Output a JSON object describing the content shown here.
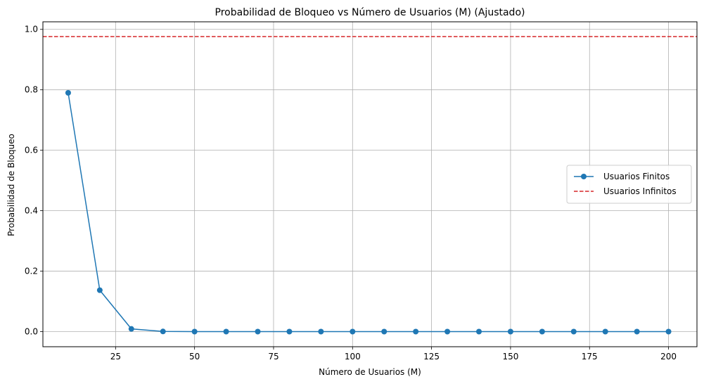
{
  "chart_data": {
    "type": "line",
    "title": "Probabilidad de Bloqueo vs Número de Usuarios (M) (Ajustado)",
    "xlabel": "Número de Usuarios (M)",
    "ylabel": "Probabilidad de Bloqueo",
    "xlim": [
      2,
      209
    ],
    "ylim": [
      -0.05,
      1.025
    ],
    "xticks": [
      25,
      50,
      75,
      100,
      125,
      150,
      175,
      200
    ],
    "xtick_labels": [
      "25",
      "50",
      "75",
      "100",
      "125",
      "150",
      "175",
      "200"
    ],
    "yticks": [
      0.0,
      0.2,
      0.4,
      0.6,
      0.8,
      1.0
    ],
    "ytick_labels": [
      "0.0",
      "0.2",
      "0.4",
      "0.6",
      "0.8",
      "1.0"
    ],
    "grid": true,
    "legend_position": "center-right",
    "series": [
      {
        "name": "Usuarios Finitos",
        "style": "solid-marker",
        "color": "#1f77b4",
        "x": [
          10,
          20,
          30,
          40,
          50,
          60,
          70,
          80,
          90,
          100,
          110,
          120,
          130,
          140,
          150,
          160,
          170,
          180,
          190,
          200
        ],
        "y": [
          0.79,
          0.137,
          0.009,
          0.0005,
          0,
          0,
          0,
          0,
          0,
          0,
          0,
          0,
          0,
          0,
          0,
          0,
          0,
          0,
          0,
          0
        ]
      },
      {
        "name": "Usuarios Infinitos",
        "style": "dashed-hline",
        "color": "#d62728",
        "y": 0.976
      }
    ]
  }
}
